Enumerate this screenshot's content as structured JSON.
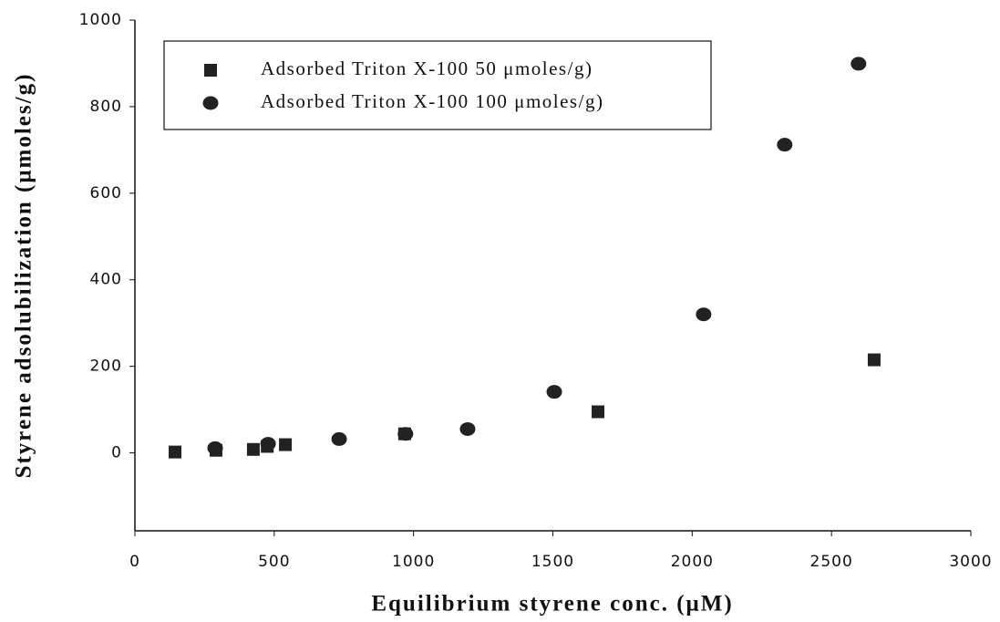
{
  "chart_data": {
    "type": "scatter",
    "x_label": "Equilibrium styrene conc. (μM)",
    "y_label": "Styrene adsolubilization (μmoles/g)",
    "xlim": [
      0,
      3000
    ],
    "xticks": [
      0,
      500,
      1000,
      1500,
      2000,
      2500,
      3000
    ],
    "ylim": [
      -180,
      1000
    ],
    "yticks": [
      0,
      200,
      400,
      600,
      800,
      1000
    ],
    "series": [
      {
        "name": "Adsorbed Triton X-100 50 μmoles/g)",
        "color": "#222222",
        "marker": "square",
        "x": [
          144,
          291,
          425,
          475,
          540,
          968,
          1662,
          2653
        ],
        "values": [
          2,
          6,
          8,
          15,
          19,
          44,
          95,
          215
        ]
      },
      {
        "name": "Adsorbed Triton X-100 100 μmoles/g)",
        "color": "#222222",
        "marker": "circle",
        "x": [
          288,
          478,
          733,
          971,
          1194,
          1505,
          2041,
          2332,
          2597
        ],
        "values": [
          11,
          21,
          32,
          44,
          55,
          141,
          320,
          712,
          899
        ]
      }
    ]
  }
}
